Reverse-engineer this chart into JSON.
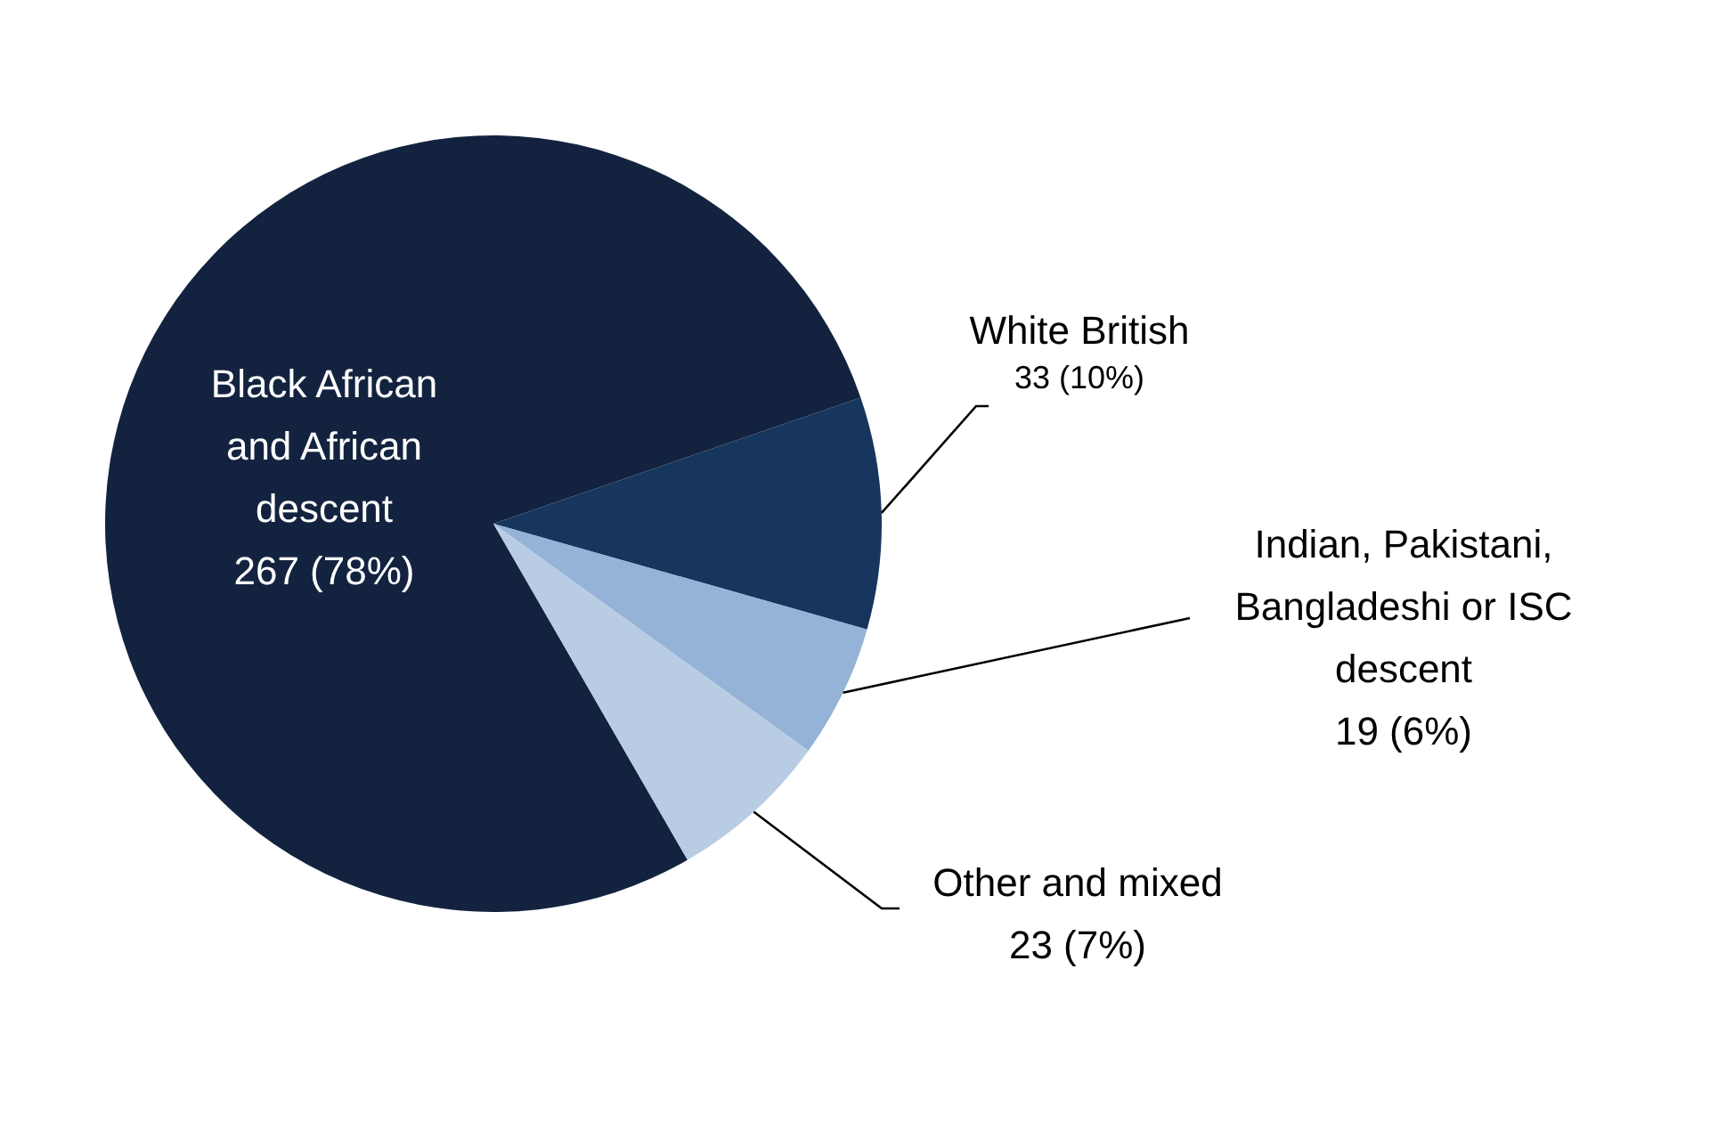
{
  "chart_data": {
    "type": "pie",
    "categories": [
      "Black African and African descent",
      "White British",
      "Indian, Pakistani, Bangladeshi or ISC descent",
      "Other and mixed"
    ],
    "values": [
      267,
      33,
      19,
      23
    ],
    "colors": [
      "#13233f",
      "#17365d",
      "#95b3d7",
      "#b8cce4"
    ],
    "value_labels": [
      "267 (78%)",
      "33 (10%)",
      "19 (6%)",
      "23 (7%)"
    ]
  }
}
